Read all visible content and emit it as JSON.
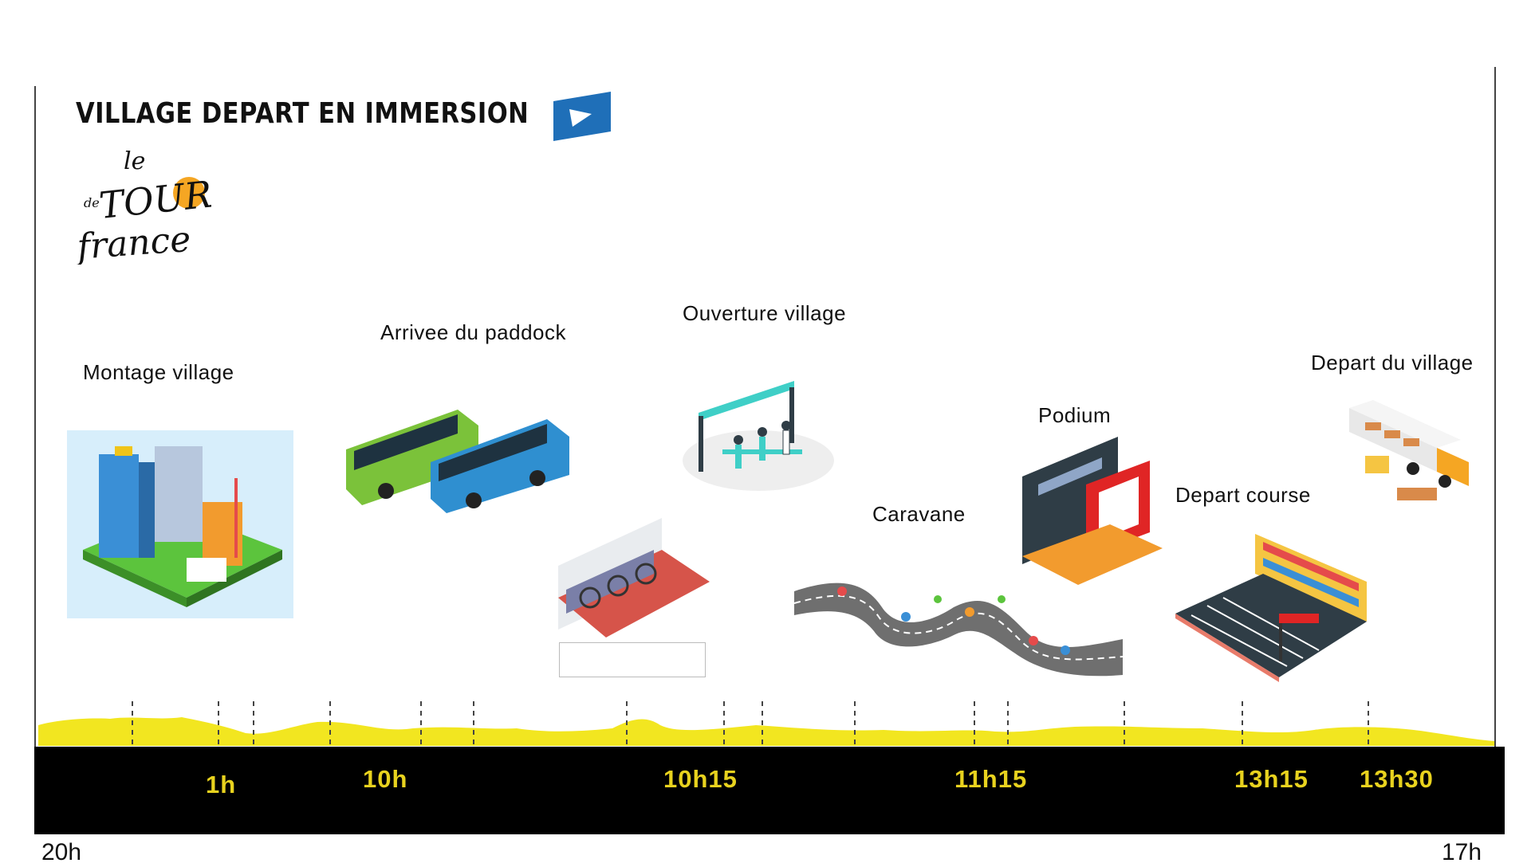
{
  "header": {
    "title": "VILLAGE DEPART EN IMMERSION",
    "logo_text": [
      "le",
      "de",
      "TOUR",
      "france"
    ]
  },
  "events": [
    {
      "label": "Montage village",
      "icon": "city-construction-illustration"
    },
    {
      "label": "Arrivee du paddock",
      "icon": "buses-illustration"
    },
    {
      "label": "Ouverture village",
      "icon": "ribbon-cutting-illustration"
    },
    {
      "label": "Caravane",
      "icon": "caravan-road-illustration"
    },
    {
      "label": "Podium",
      "icon": "stage-podium-illustration"
    },
    {
      "label": "Depart course",
      "icon": "race-track-stands-illustration"
    },
    {
      "label": "Depart du village",
      "icon": "truck-forklift-illustration"
    }
  ],
  "timeline": {
    "ticks": [
      "1h",
      "10h",
      "10h15",
      "11h15",
      "13h15",
      "13h30"
    ],
    "start": "20h",
    "end": "17h"
  },
  "colors": {
    "profile_yellow": "#f2e620",
    "tick_yellow": "#e8d21e",
    "bar": "#000000",
    "play_blue": "#1f6fb8"
  }
}
